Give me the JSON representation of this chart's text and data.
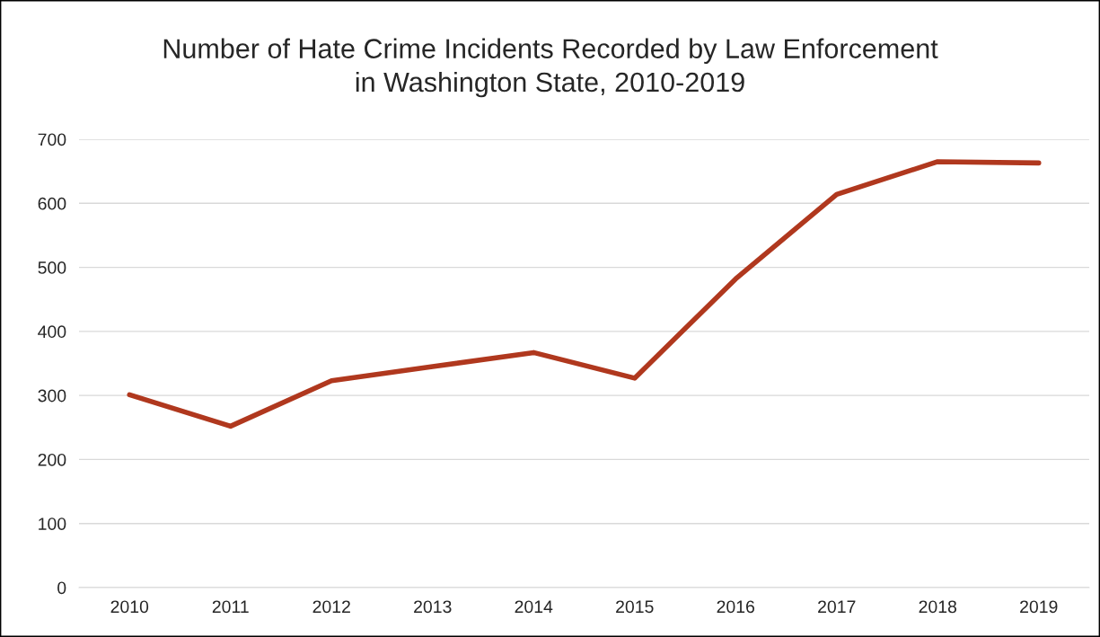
{
  "chart_data": {
    "type": "line",
    "title": "Number of Hate Crime Incidents Recorded by Law Enforcement\nin Washington State, 2010-2019",
    "categories": [
      "2010",
      "2011",
      "2012",
      "2013",
      "2014",
      "2015",
      "2016",
      "2017",
      "2018",
      "2019"
    ],
    "series": [
      {
        "color": "#b0381e",
        "values": [
          301,
          252,
          323,
          345,
          367,
          327,
          482,
          614,
          665,
          663
        ]
      }
    ],
    "ylim": [
      0,
      700
    ],
    "yticks": [
      0,
      100,
      200,
      300,
      400,
      500,
      600,
      700
    ],
    "grid": "y",
    "marker": "none",
    "line_style": "solid"
  }
}
